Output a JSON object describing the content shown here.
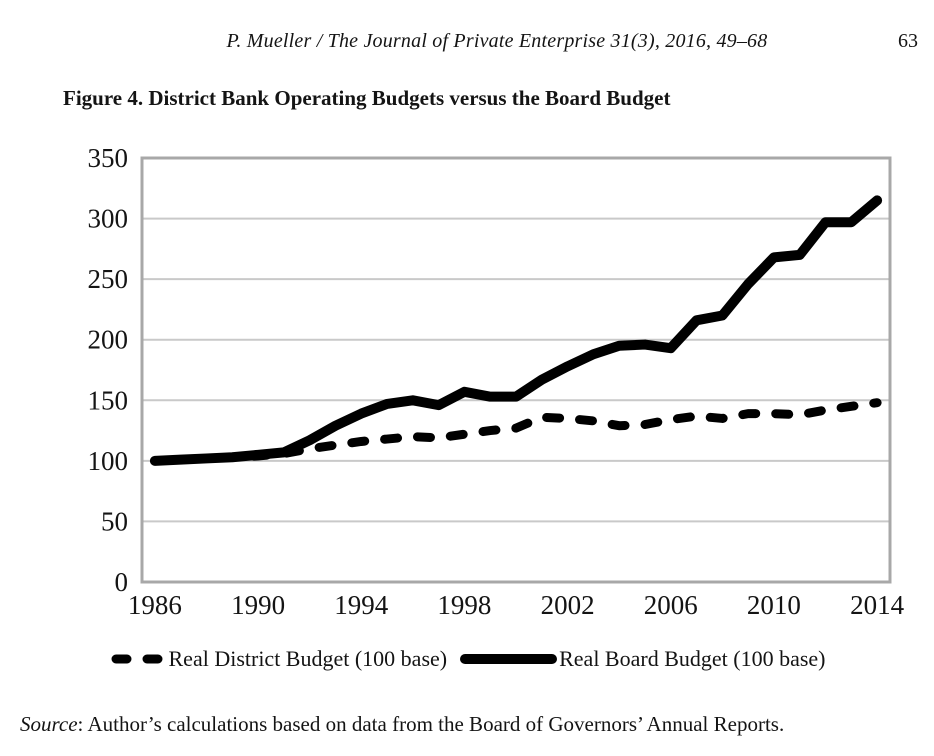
{
  "page": {
    "header": {
      "citation": "P. Mueller / The Journal of Private Enterprise 31(3), 2016, 49–68",
      "page_number": "63"
    },
    "figure_caption": "Figure 4. District Bank Operating Budgets versus the Board Budget",
    "source_label": "Source",
    "source_rest": ": Author’s calculations based on data from the Board of Governors’ Annual Reports."
  },
  "chart_data": {
    "type": "line",
    "title": "Figure 4. District Bank Operating Budgets versus the Board Budget",
    "x": [
      1986,
      1987,
      1988,
      1989,
      1990,
      1991,
      1992,
      1993,
      1994,
      1995,
      1996,
      1997,
      1998,
      1999,
      2000,
      2001,
      2002,
      2003,
      2004,
      2005,
      2006,
      2007,
      2008,
      2009,
      2010,
      2011,
      2012,
      2013,
      2014
    ],
    "series": [
      {
        "name": "Real District Budget (100 base)",
        "style": "dashed",
        "color": "#000000",
        "values": [
          100,
          101,
          102,
          103,
          104,
          106,
          110,
          113,
          116,
          118,
          120,
          119,
          122,
          125,
          127,
          136,
          135,
          133,
          129,
          130,
          134,
          137,
          135,
          139,
          139,
          138,
          142,
          145,
          148
        ]
      },
      {
        "name": "Real Board Budget (100 base)",
        "style": "solid",
        "color": "#000000",
        "values": [
          100,
          101,
          102,
          103,
          105,
          107,
          117,
          129,
          139,
          147,
          150,
          146,
          157,
          153,
          153,
          167,
          178,
          188,
          195,
          196,
          193,
          216,
          220,
          246,
          268,
          270,
          297,
          297,
          315
        ]
      }
    ],
    "xlabel": "",
    "ylabel": "",
    "ylim": [
      0,
      350
    ],
    "ytick_step": 50,
    "xticks": [
      1986,
      1990,
      1994,
      1998,
      2002,
      2006,
      2010,
      2014
    ],
    "grid": "horizontal",
    "legend_position": "bottom",
    "axis_color": "#a8a8a8",
    "grid_color": "#c9c9c9",
    "tick_label_color": "#141414"
  }
}
